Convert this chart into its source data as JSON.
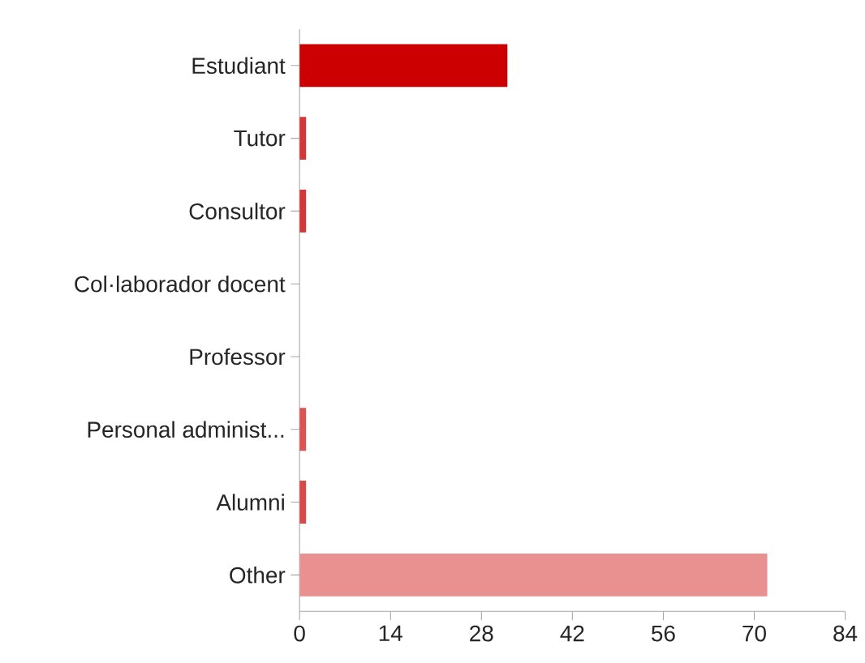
{
  "chart_data": {
    "type": "bar",
    "orientation": "horizontal",
    "categories": [
      "Estudiant",
      "Tutor",
      "Consultor",
      "Col·laborador docent",
      "Professor",
      "Personal administ...",
      "Alumni",
      "Other"
    ],
    "values": [
      32,
      1,
      1,
      0,
      0,
      1,
      1,
      72
    ],
    "colors": [
      "#cc0000",
      "#d83636",
      "#d83636",
      "#d83636",
      "#d83636",
      "#e05252",
      "#dc4848",
      "#e99090"
    ],
    "xlim": [
      0,
      84
    ],
    "xticks": [
      0,
      14,
      28,
      42,
      56,
      70,
      84
    ]
  }
}
